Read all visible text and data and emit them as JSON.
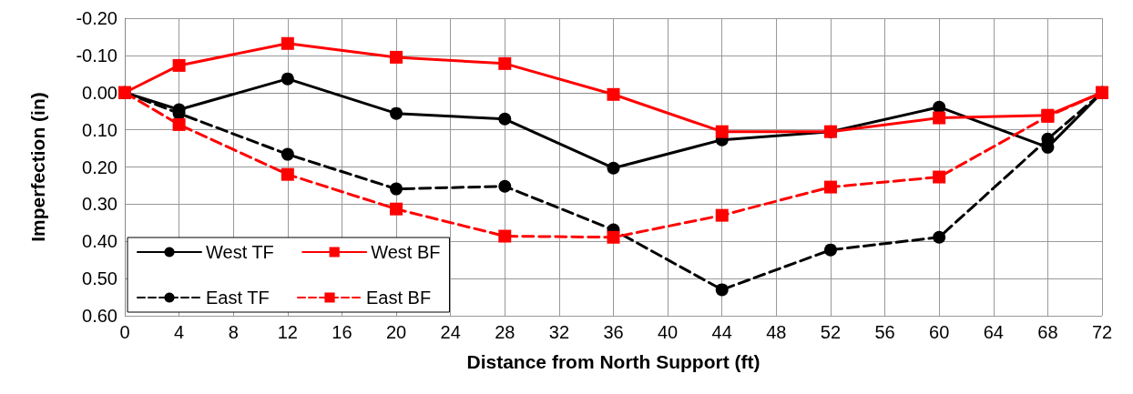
{
  "chart_data": {
    "type": "line",
    "xlabel": "Distance from North Support (ft)",
    "ylabel": "Imperfection (in)",
    "x": [
      0,
      4,
      12,
      20,
      28,
      36,
      44,
      52,
      60,
      68,
      72
    ],
    "xlim": [
      0,
      72
    ],
    "xticks": [
      0,
      4,
      8,
      12,
      16,
      20,
      24,
      28,
      32,
      36,
      40,
      44,
      48,
      52,
      56,
      60,
      64,
      68,
      72
    ],
    "ylim": [
      0.6,
      -0.2
    ],
    "yticks": [
      {
        "value": -0.2,
        "label": "-0.20"
      },
      {
        "value": -0.1,
        "label": "-0.10"
      },
      {
        "value": 0,
        "label": "0.00"
      },
      {
        "value": 0.1,
        "label": "0.10"
      },
      {
        "value": 0.2,
        "label": "0.20"
      },
      {
        "value": 0.3,
        "label": "0.30"
      },
      {
        "value": 0.4,
        "label": "0.40"
      },
      {
        "value": 0.5,
        "label": "0.50"
      },
      {
        "value": 0.6,
        "label": "0.60"
      }
    ],
    "grid": true,
    "legend": "bottom left",
    "series": [
      {
        "name": "West TF",
        "color": "#000000",
        "marker": "circle",
        "line_style": "solid",
        "values": [
          0,
          0.046,
          -0.037,
          0.056,
          0.071,
          0.203,
          0.127,
          0.105,
          0.039,
          0.147,
          0
        ]
      },
      {
        "name": "West BF",
        "color": "#ff0000",
        "marker": "square",
        "line_style": "solid",
        "values": [
          0,
          -0.073,
          -0.132,
          -0.095,
          -0.078,
          0.005,
          0.105,
          0.105,
          0.068,
          0.061,
          0
        ]
      },
      {
        "name": "East TF",
        "color": "#000000",
        "marker": "circle",
        "line_style": "dashed",
        "values": [
          0,
          0.056,
          0.166,
          0.259,
          0.252,
          0.369,
          0.53,
          0.423,
          0.389,
          0.125,
          0
        ]
      },
      {
        "name": "East BF",
        "color": "#ff0000",
        "marker": "square",
        "line_style": "dashed",
        "values": [
          0,
          0.086,
          0.22,
          0.313,
          0.386,
          0.389,
          0.33,
          0.254,
          0.227,
          0.064,
          0
        ]
      }
    ]
  }
}
